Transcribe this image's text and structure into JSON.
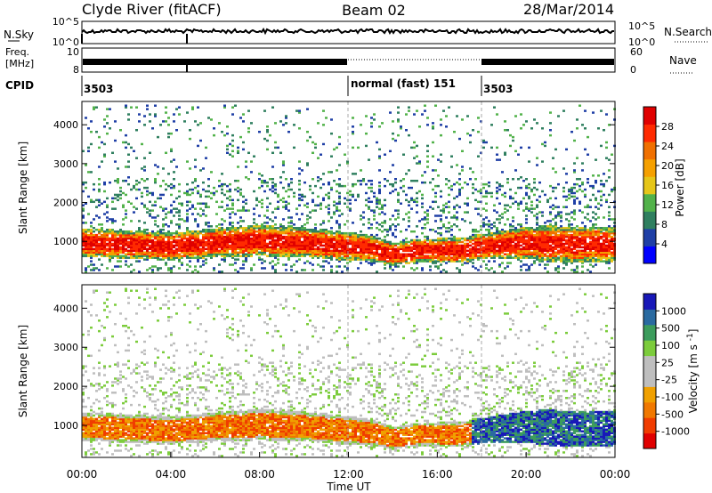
{
  "header": {
    "station": "Clyde River (fitACF)",
    "beam": "Beam 02",
    "date": "28/Mar/2014"
  },
  "panels": {
    "nsky": {
      "left_label": "N.Sky",
      "right_label": "N.Search",
      "left_ticks": [
        "10^5",
        "10^0"
      ],
      "right_ticks": [
        "10^5",
        "10^0"
      ]
    },
    "freq": {
      "left_label_top": "Freq.",
      "left_label_bottom": "[MHz]",
      "left_ticks": [
        "10",
        "8"
      ],
      "right_label": "Nave",
      "right_ticks": [
        "60",
        "0"
      ]
    },
    "cpid": {
      "label": "CPID",
      "segments": [
        {
          "start_hour": 0,
          "text": "3503"
        },
        {
          "start_hour": 12,
          "text": "normal (fast) 151"
        },
        {
          "start_hour": 18,
          "text": "3503"
        }
      ]
    }
  },
  "colors": {
    "power": [
      "#0000ff",
      "#1f3fa6",
      "#2f7f5f",
      "#52b24a",
      "#e6c619",
      "#f5a000",
      "#f07000",
      "#ff2a00",
      "#e00000"
    ],
    "velocity": [
      "#e00000",
      "#f03c00",
      "#f07800",
      "#f0a000",
      "#bebebe",
      "#bebebe",
      "#7ccc3c",
      "#3c9c5c",
      "#2a6aa0",
      "#1818b8"
    ]
  },
  "chart_data": [
    {
      "type": "heatmap",
      "name": "power",
      "title": "",
      "xlabel": "",
      "ylabel": "Slant Range [km]",
      "x_range_hours": [
        0,
        24
      ],
      "ylim": [
        180,
        4600
      ],
      "y_ticks": [
        "1000",
        "2000",
        "3000",
        "4000"
      ],
      "colorbar": {
        "label": "Power [dB]",
        "range": [
          0,
          32
        ],
        "ticks": [
          "4",
          "8",
          "12",
          "16",
          "20",
          "24",
          "28"
        ]
      },
      "band_center_km": [
        [
          0,
          950
        ],
        [
          2,
          900
        ],
        [
          4,
          850
        ],
        [
          6,
          950
        ],
        [
          8,
          1000
        ],
        [
          10,
          950
        ],
        [
          12,
          850
        ],
        [
          13,
          800
        ],
        [
          14,
          650
        ],
        [
          15,
          750
        ],
        [
          17,
          750
        ],
        [
          18,
          850
        ],
        [
          20,
          950
        ],
        [
          22,
          900
        ],
        [
          24,
          900
        ]
      ],
      "band_halfwidth_km": [
        [
          0,
          280
        ],
        [
          4,
          270
        ],
        [
          8,
          300
        ],
        [
          12,
          280
        ],
        [
          14,
          220
        ],
        [
          18,
          250
        ],
        [
          21,
          350
        ],
        [
          24,
          330
        ]
      ]
    },
    {
      "type": "heatmap",
      "name": "velocity",
      "title": "",
      "xlabel": "Time UT",
      "ylabel": "Slant Range [km]",
      "x_range_hours": [
        0,
        24
      ],
      "x_ticks": [
        "00:00",
        "04:00",
        "08:00",
        "12:00",
        "16:00",
        "20:00",
        "00:00"
      ],
      "ylim": [
        180,
        4600
      ],
      "y_ticks": [
        "1000",
        "2000",
        "3000",
        "4000"
      ],
      "colorbar": {
        "label": "Velocity [m s^-1]",
        "ticks": [
          "1000",
          "500",
          "100",
          "25",
          "-25",
          "-100",
          "-500",
          "-1000"
        ]
      }
    }
  ]
}
